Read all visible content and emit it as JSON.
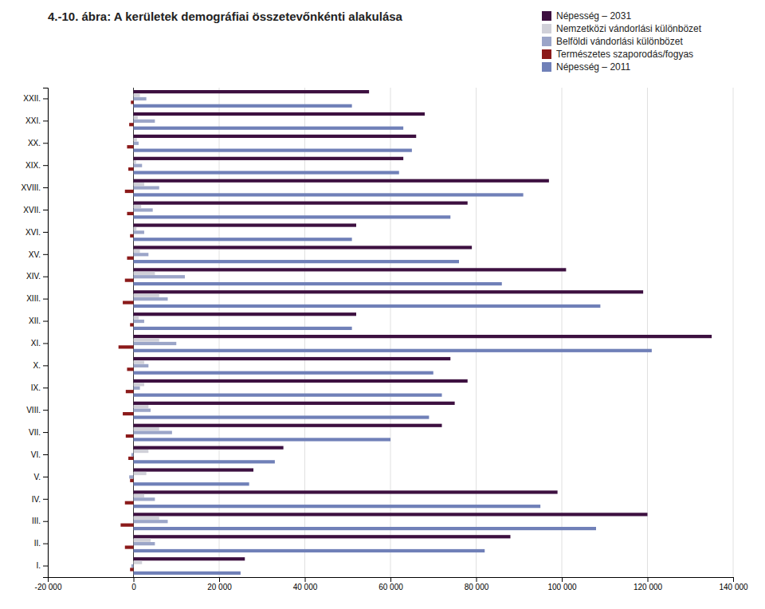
{
  "chart_data": {
    "type": "bar",
    "orientation": "horizontal",
    "title": "4.-10. ábra: A kerületek demográfiai összetevőnkénti alakulása",
    "categories": [
      "XXII.",
      "XXI.",
      "XX.",
      "XIX.",
      "XVIII.",
      "XVII.",
      "XVI.",
      "XV.",
      "XIV.",
      "XIII.",
      "XII.",
      "XI.",
      "X.",
      "IX.",
      "VIII.",
      "VII.",
      "VI.",
      "V.",
      "IV.",
      "III.",
      "II.",
      "I."
    ],
    "series": [
      {
        "name": "Népesség – 2031",
        "color": "#3D1040",
        "values": [
          55000,
          68000,
          66000,
          63000,
          97000,
          78000,
          52000,
          79000,
          101000,
          119000,
          52000,
          135000,
          74000,
          78000,
          75000,
          72000,
          35000,
          28000,
          99000,
          120000,
          88000,
          26000
        ]
      },
      {
        "name": "Nemzetközi vándorlási különbözet",
        "color": "#D0D0D8",
        "values": [
          1500,
          1000,
          800,
          600,
          2500,
          1800,
          700,
          1500,
          5000,
          6000,
          1200,
          6000,
          2500,
          2500,
          3500,
          6000,
          3500,
          3000,
          2500,
          6000,
          4000,
          2000
        ]
      },
      {
        "name": "Belföldi vándorlási különbözet",
        "color": "#9BA5C8",
        "values": [
          3000,
          5000,
          1200,
          2000,
          6000,
          4500,
          2500,
          3500,
          12000,
          8000,
          2500,
          10000,
          3500,
          1500,
          4000,
          9000,
          -500,
          -1000,
          5000,
          8000,
          5000,
          -500
        ]
      },
      {
        "name": "Természetes szaporodás/fogyas",
        "color": "#8B1A1A",
        "values": [
          -600,
          -1000,
          -1500,
          -1200,
          -2000,
          -1500,
          -800,
          -1500,
          -2000,
          -2500,
          -800,
          -3500,
          -1500,
          -1800,
          -2500,
          -1800,
          -1200,
          -800,
          -2000,
          -3000,
          -2000,
          -800
        ]
      },
      {
        "name": "Népesség – 2011",
        "color": "#7080B8",
        "values": [
          51000,
          63000,
          65000,
          62000,
          91000,
          74000,
          51000,
          76000,
          86000,
          109000,
          51000,
          121000,
          70000,
          72000,
          69000,
          60000,
          33000,
          27000,
          95000,
          108000,
          82000,
          25000
        ]
      }
    ],
    "xlim": [
      -20000,
      140000
    ],
    "xticks": [
      {
        "value": -20000,
        "label": "-20 000"
      },
      0,
      {
        "value": 20000,
        "label": "20 000"
      },
      {
        "value": 40000,
        "label": "40 000"
      },
      {
        "value": 60000,
        "label": "60 000"
      },
      {
        "value": 80000,
        "label": "80 000"
      },
      {
        "value": 100000,
        "label": "100 000"
      },
      {
        "value": 120000,
        "label": "120 000"
      },
      {
        "value": 140000,
        "label": "140 000"
      }
    ],
    "grid": true,
    "legend": "upper right"
  }
}
